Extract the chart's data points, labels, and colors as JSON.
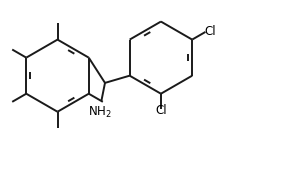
{
  "bg_color": "#ffffff",
  "line_color": "#1a1a1a",
  "double_bond_color": "#1a1a1a",
  "text_color": "#000000",
  "line_width": 1.4,
  "font_size": 8.5
}
